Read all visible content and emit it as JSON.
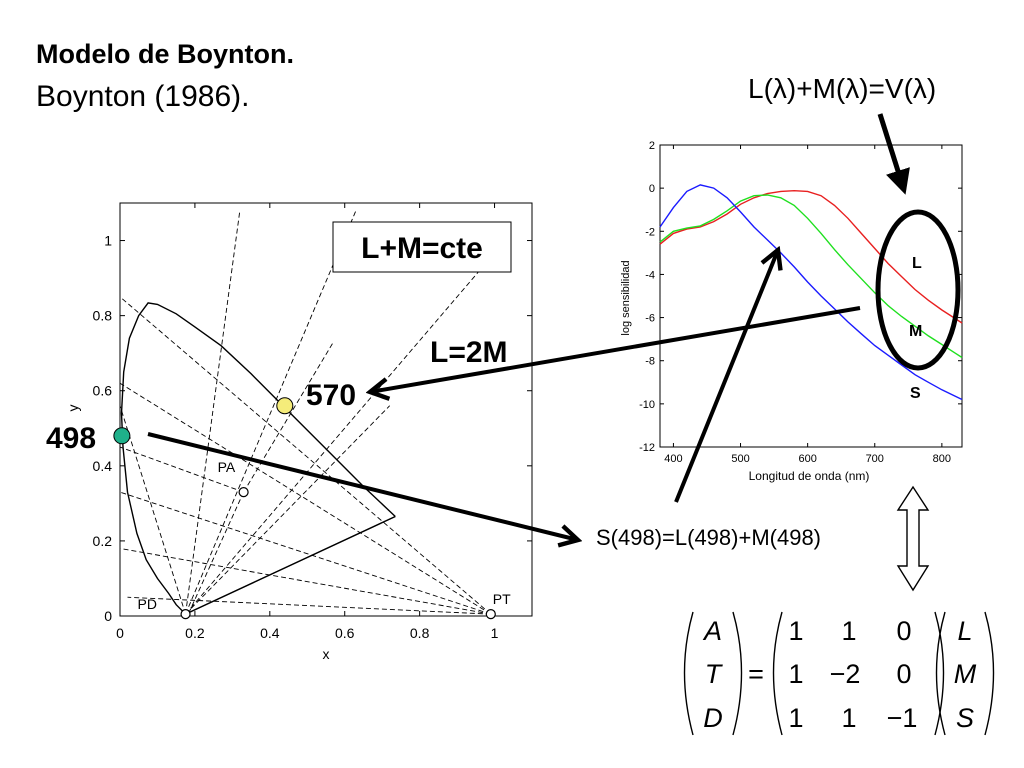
{
  "slide": {
    "title_line1": "Modelo de Boynton.",
    "title_line2": "Boynton (1986).",
    "vlambda_eq": "L(λ)+M(λ)=V(λ)",
    "label_570": "570",
    "label_498": "498",
    "label_L2M": "L=2M",
    "label_LMcte": "L+M=cte",
    "s498_eq": "S(498)=L(498)+M(498)",
    "matrix": {
      "lhs": [
        "A",
        "T",
        "D"
      ],
      "rows": [
        [
          "1",
          "1",
          "0"
        ],
        [
          "1",
          "−2",
          "0"
        ],
        [
          "1",
          "1",
          "−1"
        ]
      ],
      "rhs": [
        "L",
        "M",
        "S"
      ],
      "equals": "="
    }
  },
  "chart_data": [
    {
      "id": "chromaticity",
      "type": "line",
      "title": "",
      "xlabel": "x",
      "ylabel": "y",
      "xlim": [
        0,
        1.1
      ],
      "ylim": [
        0,
        1.1
      ],
      "xticks": [
        "0",
        "0.2",
        "0.4",
        "0.6",
        "0.8",
        "1"
      ],
      "yticks": [
        "0",
        "0.2",
        "0.4",
        "0.6",
        "0.8",
        "1"
      ],
      "locus": [
        [
          0.175,
          0.005
        ],
        [
          0.17,
          0.01
        ],
        [
          0.15,
          0.03
        ],
        [
          0.13,
          0.06
        ],
        [
          0.1,
          0.1
        ],
        [
          0.07,
          0.15
        ],
        [
          0.045,
          0.22
        ],
        [
          0.02,
          0.33
        ],
        [
          0.008,
          0.45
        ],
        [
          0.004,
          0.54
        ],
        [
          0.01,
          0.65
        ],
        [
          0.025,
          0.74
        ],
        [
          0.05,
          0.8
        ],
        [
          0.075,
          0.834
        ],
        [
          0.1,
          0.83
        ],
        [
          0.15,
          0.805
        ],
        [
          0.2,
          0.77
        ],
        [
          0.27,
          0.72
        ],
        [
          0.35,
          0.645
        ],
        [
          0.45,
          0.545
        ],
        [
          0.55,
          0.445
        ],
        [
          0.65,
          0.345
        ],
        [
          0.735,
          0.265
        ]
      ],
      "purple_line": [
        [
          0.735,
          0.265
        ],
        [
          0.175,
          0.005
        ]
      ],
      "points": {
        "PD": [
          0.175,
          0.005
        ],
        "PT": [
          0.99,
          0.005
        ],
        "PA": [
          0.33,
          0.33
        ],
        "p570": [
          0.44,
          0.56
        ],
        "p498": [
          0.005,
          0.48
        ]
      },
      "point_labels": {
        "PD": "PD",
        "PT": "PT",
        "PA": "PA"
      },
      "point_colors": {
        "p570": "#f5ec7a",
        "p498": "#1fb08a"
      }
    },
    {
      "id": "sensitivity",
      "type": "line",
      "title": "",
      "xlabel": "Longitud de onda (nm)",
      "ylabel": "log sensibilidad",
      "xlim": [
        380,
        830
      ],
      "ylim": [
        -12,
        2
      ],
      "xticks": [
        "400",
        "500",
        "600",
        "700",
        "800"
      ],
      "yticks": [
        "2",
        "0",
        "-2",
        "-4",
        "-6",
        "-8",
        "-10",
        "-12"
      ],
      "series": [
        {
          "name": "L",
          "color": "#e82020",
          "x": [
            380,
            400,
            420,
            440,
            460,
            480,
            500,
            520,
            540,
            560,
            580,
            600,
            620,
            640,
            660,
            680,
            700,
            720,
            740,
            760,
            780,
            800,
            820,
            830
          ],
          "y": [
            -2.6,
            -2.1,
            -1.9,
            -1.8,
            -1.55,
            -1.2,
            -0.75,
            -0.45,
            -0.25,
            -0.15,
            -0.12,
            -0.15,
            -0.35,
            -0.8,
            -1.4,
            -2.1,
            -2.8,
            -3.5,
            -4.1,
            -4.7,
            -5.2,
            -5.65,
            -6.05,
            -6.25
          ]
        },
        {
          "name": "M",
          "color": "#1fe01f",
          "x": [
            380,
            400,
            420,
            440,
            460,
            480,
            500,
            520,
            540,
            560,
            580,
            600,
            620,
            640,
            660,
            680,
            700,
            720,
            740,
            760,
            780,
            800,
            820,
            830
          ],
          "y": [
            -2.5,
            -2.0,
            -1.85,
            -1.75,
            -1.45,
            -1.05,
            -0.6,
            -0.35,
            -0.32,
            -0.45,
            -0.8,
            -1.4,
            -2.1,
            -2.85,
            -3.55,
            -4.2,
            -4.85,
            -5.45,
            -5.95,
            -6.4,
            -6.85,
            -7.25,
            -7.65,
            -7.85
          ]
        },
        {
          "name": "S",
          "color": "#1b1bff",
          "x": [
            380,
            400,
            420,
            440,
            460,
            480,
            500,
            520,
            540,
            560,
            580,
            600,
            620,
            640,
            660,
            680,
            700,
            720,
            740,
            760,
            780,
            800,
            820,
            830
          ],
          "y": [
            -1.8,
            -0.9,
            -0.15,
            0.15,
            0.0,
            -0.45,
            -1.1,
            -1.8,
            -2.4,
            -3.0,
            -3.65,
            -4.35,
            -5.0,
            -5.6,
            -6.2,
            -6.75,
            -7.3,
            -7.75,
            -8.2,
            -8.65,
            -9.0,
            -9.35,
            -9.65,
            -9.8
          ]
        }
      ]
    }
  ]
}
